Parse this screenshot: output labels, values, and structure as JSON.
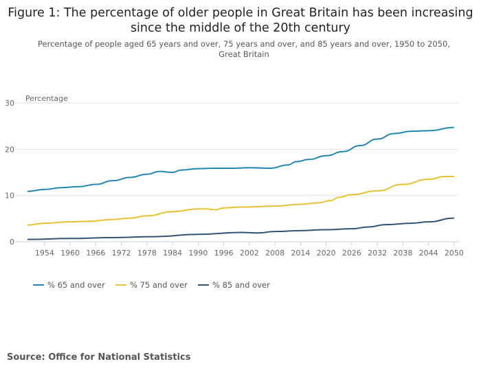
{
  "title": "Figure 1: The percentage of older people in Great Britain has been increasing since the middle of the 20th century",
  "subtitle": "Percentage of people aged 65 years and over, 75 years and over, and 85 years and over, 1950 to 2050, Great Britain",
  "source": "Source: Office for National Statistics",
  "chart_data": {
    "type": "line",
    "title": "Figure 1: The percentage of older people in Great Britain has been increasing since the middle of the 20th century",
    "ylabel": "Percentage",
    "xlabel": "",
    "ylim": [
      0,
      30
    ],
    "xlim": [
      1950,
      2050
    ],
    "yticks": [
      0,
      10,
      20,
      30
    ],
    "xticks": [
      1954,
      1960,
      1966,
      1972,
      1978,
      1984,
      1990,
      1996,
      2002,
      2008,
      2014,
      2020,
      2026,
      2032,
      2038,
      2044,
      2050
    ],
    "grid": true,
    "legend": "bottom-left",
    "series": [
      {
        "name": "% 65 and over",
        "color": "#1f88b3",
        "x": [
          1950,
          1954,
          1958,
          1962,
          1966,
          1970,
          1974,
          1978,
          1981,
          1984,
          1986,
          1990,
          1994,
          1998,
          2002,
          2007,
          2011,
          2013,
          2016,
          2020,
          2024,
          2028,
          2032,
          2036,
          2040,
          2044,
          2050
        ],
        "values": [
          10.9,
          11.3,
          11.7,
          11.9,
          12.4,
          13.2,
          13.9,
          14.6,
          15.2,
          15.0,
          15.5,
          15.8,
          15.9,
          15.9,
          16.0,
          15.9,
          16.6,
          17.3,
          17.8,
          18.6,
          19.5,
          20.8,
          22.2,
          23.4,
          23.9,
          24.0,
          24.7
        ]
      },
      {
        "name": "% 75 and over",
        "color": "#e8c132",
        "x": [
          1950,
          1954,
          1960,
          1964,
          1970,
          1974,
          1978,
          1984,
          1990,
          1992,
          1994,
          1996,
          2000,
          2008,
          2014,
          2018,
          2021,
          2023,
          2026,
          2032,
          2038,
          2044,
          2048,
          2050
        ],
        "values": [
          3.6,
          4.0,
          4.3,
          4.4,
          4.8,
          5.1,
          5.6,
          6.5,
          7.1,
          7.1,
          6.9,
          7.3,
          7.5,
          7.7,
          8.1,
          8.4,
          8.9,
          9.6,
          10.2,
          11.0,
          12.4,
          13.5,
          14.1,
          14.1
        ]
      },
      {
        "name": "% 85 and over",
        "color": "#335174",
        "x": [
          1950,
          1960,
          1970,
          1980,
          1990,
          2000,
          2004,
          2008,
          2014,
          2020,
          2026,
          2030,
          2034,
          2040,
          2044,
          2050
        ],
        "values": [
          0.5,
          0.7,
          0.9,
          1.1,
          1.6,
          2.0,
          1.9,
          2.2,
          2.4,
          2.6,
          2.8,
          3.2,
          3.7,
          4.0,
          4.3,
          5.1
        ]
      }
    ]
  }
}
